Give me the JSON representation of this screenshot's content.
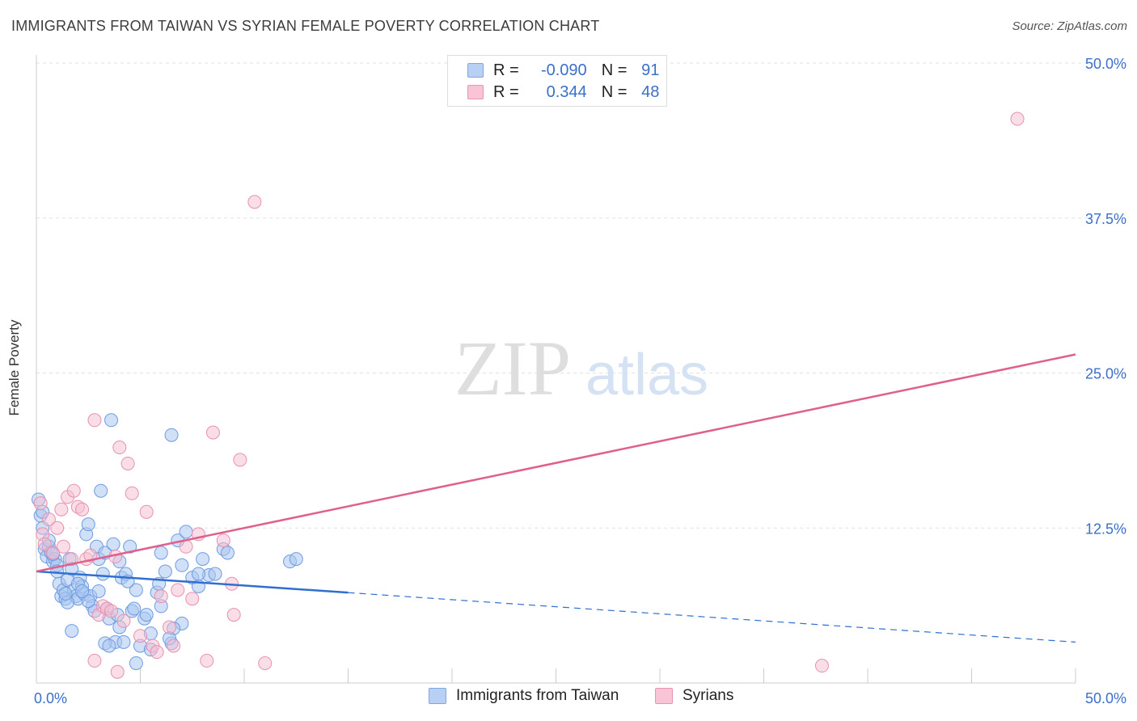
{
  "header": {
    "title": "IMMIGRANTS FROM TAIWAN VS SYRIAN FEMALE POVERTY CORRELATION CHART",
    "source": "Source: ZipAtlas.com"
  },
  "watermark": {
    "zip": "ZIP",
    "atlas": "atlas"
  },
  "stats_legend": {
    "rows": [
      {
        "r_label": "R =",
        "r_value": "-0.090",
        "n_label": "N =",
        "n_value": "91",
        "color": "#7ea6e0"
      },
      {
        "r_label": "R =",
        "r_value": "0.344",
        "n_label": "N =",
        "n_value": "48",
        "color": "#e994b4"
      }
    ]
  },
  "colors": {
    "blue_fill": "#a9c6f0",
    "blue_stroke": "#6f9be0",
    "blue_line": "#2f6fd0",
    "pink_fill": "#f6bdd0",
    "pink_stroke": "#e890b0",
    "pink_line": "#e0608c",
    "grid": "#e2e2e2",
    "tick_label": "#3b6fc9"
  },
  "chart_data": {
    "type": "scatter",
    "title": "IMMIGRANTS FROM TAIWAN VS SYRIAN FEMALE POVERTY CORRELATION CHART",
    "xlabel": "",
    "ylabel": "Female Poverty",
    "xlim": [
      0,
      50
    ],
    "ylim": [
      0,
      50
    ],
    "x_tick_labels": [
      "0.0%",
      "50.0%"
    ],
    "y_tick_labels": [
      "12.5%",
      "25.0%",
      "37.5%",
      "50.0%"
    ],
    "y_ticks": [
      12.5,
      25.0,
      37.5,
      50.0
    ],
    "grid": true,
    "legend_position": "bottom",
    "series": [
      {
        "name": "Immigrants from Taiwan",
        "r": -0.09,
        "n": 91,
        "points": [
          [
            0.1,
            14.8
          ],
          [
            0.2,
            13.5
          ],
          [
            0.3,
            13.8
          ],
          [
            0.4,
            10.8
          ],
          [
            0.5,
            10.2
          ],
          [
            0.6,
            11.0
          ],
          [
            0.7,
            10.5
          ],
          [
            0.8,
            9.8
          ],
          [
            0.9,
            10.0
          ],
          [
            1.0,
            9.5
          ],
          [
            1.1,
            8.0
          ],
          [
            1.2,
            7.0
          ],
          [
            1.3,
            7.5
          ],
          [
            1.4,
            6.8
          ],
          [
            1.5,
            8.3
          ],
          [
            1.6,
            10.0
          ],
          [
            1.7,
            9.2
          ],
          [
            1.8,
            7.5
          ],
          [
            1.9,
            7.0
          ],
          [
            2.0,
            6.8
          ],
          [
            2.1,
            8.5
          ],
          [
            2.2,
            7.8
          ],
          [
            2.3,
            7.2
          ],
          [
            2.4,
            12.0
          ],
          [
            2.5,
            12.8
          ],
          [
            2.6,
            7.0
          ],
          [
            2.7,
            6.2
          ],
          [
            2.8,
            5.8
          ],
          [
            2.9,
            11.0
          ],
          [
            3.0,
            10.0
          ],
          [
            3.1,
            15.5
          ],
          [
            3.2,
            8.8
          ],
          [
            3.3,
            10.5
          ],
          [
            3.4,
            6.0
          ],
          [
            3.5,
            5.2
          ],
          [
            3.6,
            21.2
          ],
          [
            3.7,
            11.2
          ],
          [
            3.8,
            3.3
          ],
          [
            3.9,
            5.5
          ],
          [
            4.0,
            9.8
          ],
          [
            4.1,
            8.5
          ],
          [
            4.2,
            3.3
          ],
          [
            4.3,
            8.8
          ],
          [
            4.5,
            11.0
          ],
          [
            4.6,
            5.8
          ],
          [
            4.8,
            7.5
          ],
          [
            5.0,
            3.0
          ],
          [
            5.2,
            5.2
          ],
          [
            5.5,
            2.7
          ],
          [
            5.8,
            7.3
          ],
          [
            6.0,
            10.5
          ],
          [
            6.2,
            9.0
          ],
          [
            6.5,
            3.2
          ],
          [
            6.8,
            11.5
          ],
          [
            7.0,
            4.8
          ],
          [
            7.2,
            12.2
          ],
          [
            7.5,
            8.5
          ],
          [
            7.8,
            7.8
          ],
          [
            8.0,
            10.0
          ],
          [
            8.3,
            8.7
          ],
          [
            8.6,
            8.8
          ],
          [
            9.0,
            10.8
          ],
          [
            6.5,
            20.0
          ],
          [
            12.2,
            9.8
          ],
          [
            0.3,
            12.5
          ],
          [
            0.6,
            11.5
          ],
          [
            1.0,
            9.0
          ],
          [
            1.5,
            6.5
          ],
          [
            2.0,
            8.0
          ],
          [
            2.5,
            6.6
          ],
          [
            3.0,
            7.4
          ],
          [
            4.0,
            4.5
          ],
          [
            5.5,
            4.0
          ],
          [
            6.6,
            4.4
          ],
          [
            7.0,
            9.5
          ],
          [
            1.7,
            4.2
          ],
          [
            3.3,
            3.2
          ],
          [
            6.4,
            3.6
          ],
          [
            2.2,
            7.4
          ],
          [
            1.4,
            7.2
          ],
          [
            0.8,
            10.4
          ],
          [
            4.7,
            6.0
          ],
          [
            5.3,
            5.5
          ],
          [
            6.0,
            6.2
          ],
          [
            7.8,
            8.8
          ],
          [
            3.5,
            3.0
          ],
          [
            4.4,
            8.2
          ],
          [
            5.9,
            8.0
          ],
          [
            12.5,
            10.0
          ],
          [
            9.2,
            10.5
          ],
          [
            4.8,
            1.6
          ]
        ]
      },
      {
        "name": "Syrians",
        "r": 0.344,
        "n": 48,
        "points": [
          [
            0.2,
            14.5
          ],
          [
            0.3,
            12.0
          ],
          [
            0.4,
            11.2
          ],
          [
            0.6,
            13.2
          ],
          [
            0.8,
            10.5
          ],
          [
            1.0,
            12.5
          ],
          [
            1.2,
            14.0
          ],
          [
            1.5,
            15.0
          ],
          [
            1.7,
            10.0
          ],
          [
            1.8,
            15.5
          ],
          [
            2.0,
            14.2
          ],
          [
            2.2,
            14.0
          ],
          [
            2.4,
            10.0
          ],
          [
            2.6,
            10.3
          ],
          [
            2.8,
            21.2
          ],
          [
            3.0,
            5.5
          ],
          [
            3.2,
            6.2
          ],
          [
            3.4,
            6.0
          ],
          [
            3.6,
            5.8
          ],
          [
            3.8,
            10.2
          ],
          [
            4.0,
            19.0
          ],
          [
            4.2,
            5.0
          ],
          [
            4.4,
            17.7
          ],
          [
            4.6,
            15.3
          ],
          [
            5.0,
            3.8
          ],
          [
            5.3,
            13.8
          ],
          [
            5.6,
            3.0
          ],
          [
            6.0,
            7.0
          ],
          [
            6.4,
            4.5
          ],
          [
            6.8,
            7.5
          ],
          [
            7.2,
            11.0
          ],
          [
            7.5,
            6.8
          ],
          [
            7.8,
            12.0
          ],
          [
            8.2,
            1.8
          ],
          [
            8.5,
            20.2
          ],
          [
            9.0,
            11.5
          ],
          [
            9.4,
            8.0
          ],
          [
            9.8,
            18.0
          ],
          [
            10.5,
            38.8
          ],
          [
            11.0,
            1.6
          ],
          [
            37.8,
            1.4
          ],
          [
            47.2,
            45.5
          ],
          [
            2.8,
            1.8
          ],
          [
            3.9,
            0.9
          ],
          [
            5.8,
            2.5
          ],
          [
            6.6,
            3.0
          ],
          [
            9.5,
            5.5
          ],
          [
            1.3,
            11.0
          ]
        ]
      }
    ],
    "trend_lines": [
      {
        "series": "Immigrants from Taiwan",
        "x0": 0,
        "y0": 9.0,
        "x_solid_end": 15,
        "x1": 50,
        "y1": 3.3
      },
      {
        "series": "Syrians",
        "x0": 0,
        "y0": 9.0,
        "x1": 50,
        "y1": 26.5
      }
    ]
  },
  "bottom_legend": {
    "items": [
      {
        "label": "Immigrants from Taiwan",
        "swatch": "blue"
      },
      {
        "label": "Syrians",
        "swatch": "pink"
      }
    ]
  }
}
